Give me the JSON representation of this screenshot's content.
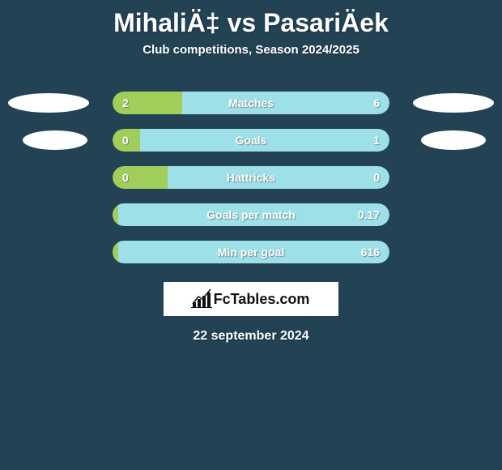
{
  "title": "MihaliÄ‡ vs PasariÄek",
  "subtitle": "Club competitions, Season 2024/2025",
  "date": "22 september 2024",
  "logo_text": "FcTables.com",
  "background_color": "#234355",
  "left_color": "#a1ce5b",
  "right_color": "#9ee0e7",
  "rows": [
    {
      "label": "Matches",
      "left": "2",
      "right": "6",
      "left_pct": 25,
      "right_pct": 75,
      "show_left_placeholder": true,
      "show_right_placeholder": true,
      "placeholder_variant": "big"
    },
    {
      "label": "Goals",
      "left": "0",
      "right": "1",
      "left_pct": 10,
      "right_pct": 90,
      "show_left_placeholder": true,
      "show_right_placeholder": true,
      "placeholder_variant": "small"
    },
    {
      "label": "Hattricks",
      "left": "0",
      "right": "0",
      "left_pct": 20,
      "right_pct": 80,
      "show_left_placeholder": false,
      "show_right_placeholder": false
    },
    {
      "label": "Goals per match",
      "left": "",
      "right": "0.17",
      "left_pct": 2,
      "right_pct": 98,
      "show_left_placeholder": false,
      "show_right_placeholder": false
    },
    {
      "label": "Min per goal",
      "left": "",
      "right": "616",
      "left_pct": 2,
      "right_pct": 98,
      "show_left_placeholder": false,
      "show_right_placeholder": false
    }
  ]
}
